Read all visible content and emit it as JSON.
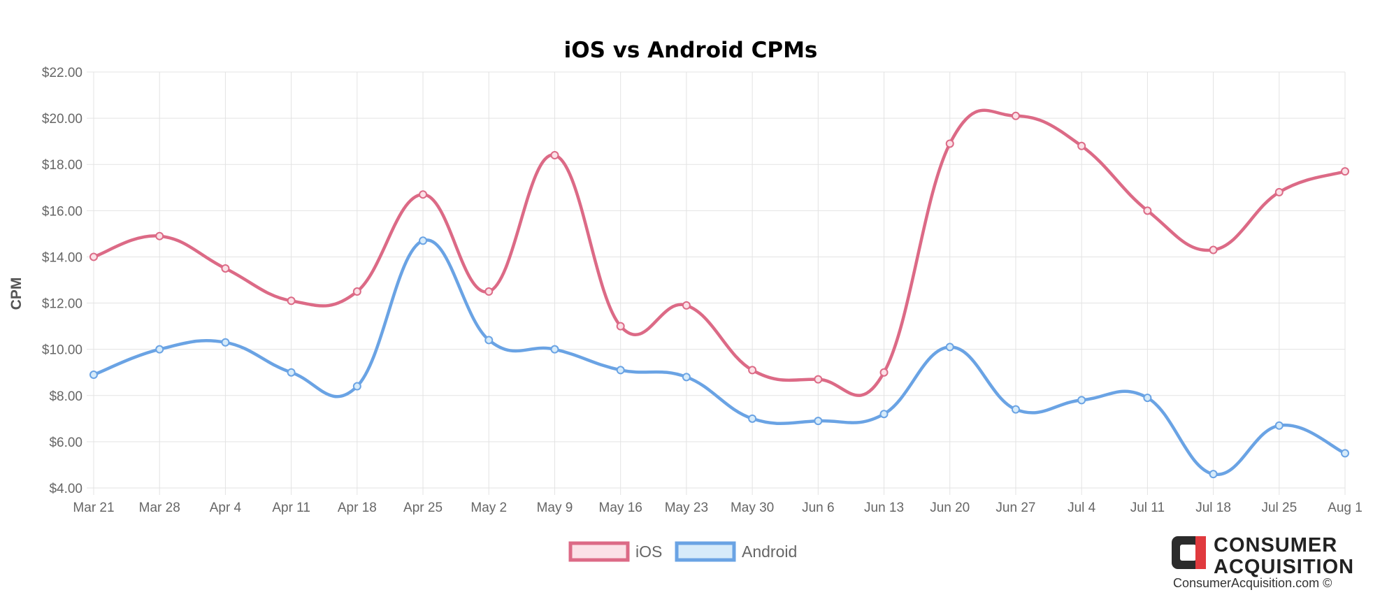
{
  "chart_data": {
    "type": "line",
    "title": "iOS vs Android CPMs",
    "xlabel": "",
    "ylabel": "CPM",
    "categories": [
      "Mar 21",
      "Mar 28",
      "Apr 4",
      "Apr 11",
      "Apr 18",
      "Apr 25",
      "May 2",
      "May 9",
      "May 16",
      "May 23",
      "May 30",
      "Jun 6",
      "Jun 13",
      "Jun 20",
      "Jun 27",
      "Jul 4",
      "Jul 11",
      "Jul 18",
      "Jul 25",
      "Aug 1"
    ],
    "yticks": [
      "$4.00",
      "$6.00",
      "$8.00",
      "$10.00",
      "$12.00",
      "$14.00",
      "$16.00",
      "$18.00",
      "$20.00",
      "$22.00"
    ],
    "ylim": [
      4,
      22
    ],
    "grid": true,
    "legend_position": "bottom",
    "series": [
      {
        "name": "iOS",
        "color": "#dc6a86",
        "legend_fill": "#fbe1e7",
        "values": [
          14.0,
          14.9,
          13.5,
          12.1,
          12.5,
          16.7,
          12.5,
          18.4,
          11.0,
          11.9,
          9.1,
          8.7,
          9.0,
          18.9,
          20.1,
          18.8,
          16.0,
          14.3,
          16.8,
          17.7
        ]
      },
      {
        "name": "Android",
        "color": "#6aa3e4",
        "legend_fill": "#d6ebfa",
        "values": [
          8.9,
          10.0,
          10.3,
          9.0,
          8.4,
          14.7,
          10.4,
          10.0,
          9.1,
          8.8,
          7.0,
          6.9,
          7.2,
          10.1,
          7.4,
          7.8,
          7.9,
          4.6,
          6.7,
          5.5
        ]
      }
    ]
  },
  "brand": {
    "line1": "CONSUMER",
    "line2": "ACQUISITION",
    "url": "ConsumerAcquisition.com ©",
    "logo_colors": {
      "dark": "#2b2b2b",
      "red": "#e03a3e"
    }
  }
}
